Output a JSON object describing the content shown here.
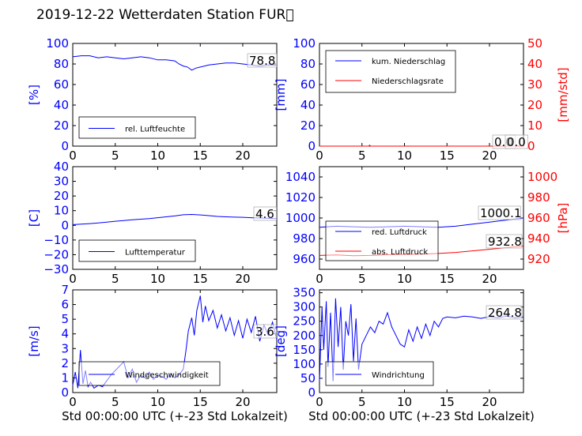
{
  "figure_title": "2019-12-22 Wetterdaten Station FUR\u0000",
  "colors": {
    "left_axis": "#0000ff",
    "right_axis": "#ff0000",
    "series1": "#0000ff",
    "series2": "#ff0000",
    "light_series": "#7f7fff"
  },
  "chart_data": [
    {
      "id": "humidity",
      "type": "line",
      "xlim": [
        0,
        24
      ],
      "ylim": [
        0,
        100
      ],
      "xticks": [
        "0",
        "5",
        "10",
        "15",
        "20"
      ],
      "yticks": [
        "0",
        "20",
        "40",
        "60",
        "80",
        "100"
      ],
      "ylabel": "[%]",
      "xlabel": "",
      "last_value_label": "78.8",
      "legend_position": "lower-left",
      "series": [
        {
          "name": "rel. Luftfeuchte",
          "color": "#0000ff",
          "x": [
            0,
            1,
            2,
            3,
            4,
            5,
            6,
            7,
            8,
            9,
            10,
            11,
            12,
            12.5,
            13,
            13.5,
            14,
            14.5,
            15,
            16,
            17,
            18,
            19,
            20,
            21,
            22,
            23,
            24
          ],
          "y": [
            87,
            88,
            88,
            86,
            87,
            86,
            85,
            86,
            87,
            86,
            84,
            84,
            83,
            80,
            78,
            77,
            74,
            76,
            77,
            79,
            80,
            81,
            81,
            80,
            79,
            78,
            79,
            78.8
          ]
        }
      ]
    },
    {
      "id": "precipitation",
      "type": "line",
      "xlim": [
        0,
        24
      ],
      "ylim": [
        0,
        100
      ],
      "y2lim": [
        0,
        50
      ],
      "xticks": [
        "0",
        "5",
        "10",
        "15",
        "20"
      ],
      "yticks": [
        "0",
        "20",
        "40",
        "60",
        "80",
        "100"
      ],
      "y2ticks": [
        "0",
        "10",
        "20",
        "30",
        "40",
        "50"
      ],
      "ylabel": "[mm]",
      "y2label": "[mm/std]",
      "xlabel": "",
      "last_value_labels": [
        "0.0",
        "0.0"
      ],
      "legend_position": "upper-left",
      "series": [
        {
          "name": "kum. Niederschlag",
          "color": "#0000ff",
          "axis": "left",
          "x": [
            0,
            24
          ],
          "y": [
            0,
            0
          ]
        },
        {
          "name": "Niederschlagsrate",
          "color": "#ff0000",
          "axis": "right",
          "x": [
            0,
            5.8,
            5.9,
            6,
            24
          ],
          "y": [
            0,
            0,
            0.5,
            0,
            0
          ]
        }
      ]
    },
    {
      "id": "temperature",
      "type": "line",
      "xlim": [
        0,
        24
      ],
      "ylim": [
        -30,
        40
      ],
      "xticks": [
        "0",
        "5",
        "10",
        "15",
        "20"
      ],
      "yticks": [
        "−30",
        "−20",
        "−10",
        "0",
        "10",
        "20",
        "30",
        "40"
      ],
      "ylabel": "[C]",
      "xlabel": "",
      "last_value_label": "4.6",
      "legend_position": "lower-left",
      "series": [
        {
          "name": "Lufttemperatur",
          "color": "#0000ff",
          "x": [
            0,
            1,
            2,
            3,
            4,
            5,
            6,
            7,
            8,
            9,
            10,
            11,
            12,
            13,
            14,
            15,
            16,
            17,
            18,
            19,
            20,
            21,
            22,
            23,
            24
          ],
          "y": [
            0.5,
            0.8,
            1.2,
            1.6,
            2.2,
            2.8,
            3.3,
            3.8,
            4.2,
            4.6,
            5.2,
            5.8,
            6.4,
            7.2,
            7.4,
            7.1,
            6.6,
            6.1,
            5.8,
            5.6,
            5.5,
            5.2,
            5.0,
            4.8,
            4.6
          ]
        }
      ]
    },
    {
      "id": "pressure",
      "type": "line",
      "xlim": [
        0,
        24
      ],
      "ylim": [
        950,
        1050
      ],
      "y2lim": [
        910,
        1010
      ],
      "xticks": [
        "0",
        "5",
        "10",
        "15",
        "20"
      ],
      "yticks": [
        "960",
        "980",
        "1000",
        "1020",
        "1040"
      ],
      "y2ticks": [
        "920",
        "940",
        "960",
        "980",
        "1000"
      ],
      "ylabel": "",
      "y2label": "[hPa]",
      "xlabel": "",
      "last_value_labels": [
        "1000.1",
        "932.8"
      ],
      "legend_position": "lower-left",
      "series": [
        {
          "name": "red. Luftdruck",
          "color": "#0000ff",
          "axis": "left",
          "x": [
            0,
            2,
            4,
            6,
            8,
            10,
            12,
            14,
            16,
            18,
            20,
            22,
            24
          ],
          "y": [
            991,
            992,
            991.5,
            991,
            991.5,
            992,
            991.5,
            991,
            992,
            994,
            996,
            998,
            1000.1
          ]
        },
        {
          "name": "abs. Luftdruck",
          "color": "#ff0000",
          "axis": "right",
          "x": [
            0,
            2,
            4,
            6,
            8,
            10,
            12,
            14,
            16,
            18,
            20,
            22,
            24
          ],
          "y": [
            923.5,
            924,
            923.2,
            923.5,
            924.2,
            924.5,
            924.8,
            925.5,
            926.5,
            928,
            929.5,
            931.2,
            932.8
          ]
        }
      ]
    },
    {
      "id": "windspeed",
      "type": "line",
      "xlim": [
        0,
        24
      ],
      "ylim": [
        0,
        7
      ],
      "xticks": [
        "0",
        "5",
        "10",
        "15",
        "20"
      ],
      "yticks": [
        "0",
        "1",
        "2",
        "3",
        "4",
        "5",
        "6",
        "7"
      ],
      "ylabel": "[m/s]",
      "xlabel": "Std 00:00:00 UTC (+-23 Std Lokalzeit)",
      "last_value_label": "3.6",
      "legend_position": "lower-left",
      "series": [
        {
          "name": "Windgeschwindigkeit",
          "color": "#0000ff",
          "x": [
            0,
            0.3,
            0.6,
            0.9,
            1.2,
            1.5,
            1.8,
            2.1,
            2.5,
            3,
            3.5,
            4,
            4.5,
            5,
            5.5,
            6,
            6.5,
            7,
            7.5,
            8,
            8.5,
            9,
            9.5,
            10,
            10.5,
            11,
            11.5,
            12,
            12.5,
            13,
            13.3,
            13.6,
            14,
            14.3,
            14.6,
            15,
            15.3,
            15.6,
            16,
            16.5,
            17,
            17.5,
            18,
            18.5,
            19,
            19.5,
            20,
            20.5,
            21,
            21.5,
            22,
            22.5,
            23,
            23.5,
            24
          ],
          "y": [
            0.5,
            1.4,
            0.3,
            2.9,
            0.6,
            1.5,
            0.4,
            0.7,
            0.3,
            0.5,
            0.4,
            0.8,
            1.2,
            1.5,
            1.8,
            2.1,
            1.0,
            1.6,
            0.7,
            1.2,
            1.0,
            1.4,
            0.9,
            1.2,
            1.1,
            0.9,
            1.3,
            1.0,
            1.2,
            1.6,
            2.8,
            4.2,
            5.1,
            3.9,
            5.6,
            6.6,
            4.8,
            5.9,
            4.9,
            5.6,
            4.4,
            5.3,
            4.2,
            5.1,
            3.9,
            4.9,
            3.7,
            5.0,
            4.1,
            5.2,
            3.5,
            4.6,
            3.9,
            4.8,
            3.6
          ]
        }
      ]
    },
    {
      "id": "winddirection",
      "type": "line",
      "xlim": [
        0,
        24
      ],
      "ylim": [
        0,
        360
      ],
      "xticks": [
        "0",
        "5",
        "10",
        "15",
        "20"
      ],
      "yticks": [
        "0",
        "50",
        "100",
        "150",
        "200",
        "250",
        "300",
        "350"
      ],
      "ylabel": "[deg]",
      "xlabel": "Std 00:00:00 UTC (+-23 Std Lokalzeit)",
      "last_value_label": "264.8",
      "legend_position": "lower-left",
      "series": [
        {
          "name": "Windrichtung",
          "color": "#0000ff",
          "x": [
            0,
            0.3,
            0.5,
            0.8,
            1.0,
            1.3,
            1.6,
            1.9,
            2.2,
            2.5,
            2.8,
            3.1,
            3.4,
            3.7,
            4.0,
            4.3,
            4.6,
            5,
            5.5,
            6,
            6.5,
            7,
            7.5,
            8,
            8.5,
            9,
            9.5,
            10,
            10.5,
            11,
            11.5,
            12,
            12.5,
            13,
            13.5,
            14,
            14.5,
            15,
            16,
            17,
            18,
            19,
            20,
            21,
            22,
            23,
            24
          ],
          "y": [
            40,
            300,
            150,
            320,
            90,
            280,
            40,
            330,
            160,
            300,
            80,
            250,
            200,
            310,
            110,
            260,
            80,
            170,
            200,
            230,
            210,
            250,
            240,
            280,
            230,
            200,
            170,
            160,
            220,
            180,
            230,
            190,
            240,
            200,
            250,
            230,
            260,
            265,
            262,
            268,
            265,
            260,
            266,
            262,
            268,
            262,
            264.8
          ]
        }
      ]
    }
  ]
}
